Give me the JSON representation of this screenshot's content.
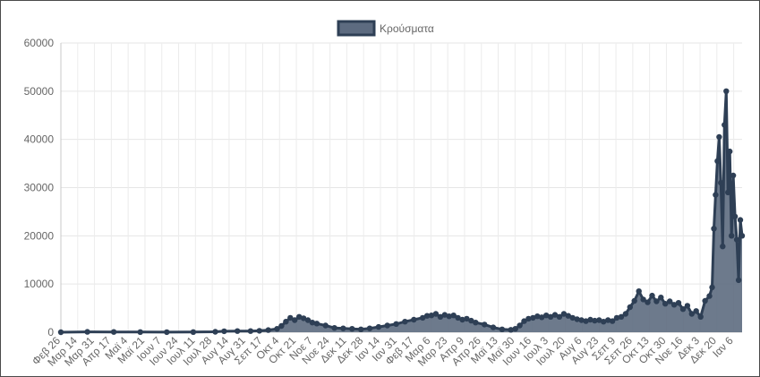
{
  "chart_data": {
    "type": "area",
    "legend": "Κρούσματα",
    "legend_position": "top-center",
    "grid": true,
    "ylim": [
      0,
      60000
    ],
    "yticks": [
      0,
      10000,
      20000,
      30000,
      40000,
      50000,
      60000
    ],
    "xtick_labels": [
      "Φεβ 26",
      "Μαρ 14",
      "Μαρ 31",
      "Απρ 17",
      "Μαϊ 4",
      "Μαϊ 21",
      "Ιουν 7",
      "Ιουν 24",
      "Ιουλ 11",
      "Ιουλ 28",
      "Αυγ 14",
      "Αυγ 31",
      "Σεπ 17",
      "Οκτ 4",
      "Οκτ 21",
      "Νοε 7",
      "Νοε 24",
      "Δεκ 11",
      "Δεκ 28",
      "Ιαν 14",
      "Ιαν 31",
      "Φεβ 17",
      "Μαρ 6",
      "Μαρ 23",
      "Απρ 9",
      "Απρ 26",
      "Μαϊ 13",
      "Μαϊ 30",
      "Ιουν 16",
      "Ιουλ 3",
      "Ιουλ 20",
      "Αυγ 6",
      "Αυγ 23",
      "Σεπ 9",
      "Σεπ 26",
      "Οκτ 13",
      "Οκτ 30",
      "Νοε 16",
      "Δεκ 3",
      "Δεκ 20",
      "Ιαν 6"
    ],
    "series": [
      {
        "name": "Κρούσματα",
        "color": "#2e3f55",
        "fill": "#5d6b80",
        "points": [
          [
            0,
            0
          ],
          [
            30,
            80
          ],
          [
            60,
            60
          ],
          [
            90,
            30
          ],
          [
            120,
            20
          ],
          [
            150,
            40
          ],
          [
            175,
            100
          ],
          [
            185,
            200
          ],
          [
            200,
            250
          ],
          [
            215,
            250
          ],
          [
            225,
            300
          ],
          [
            235,
            450
          ],
          [
            245,
            700
          ],
          [
            250,
            1300
          ],
          [
            255,
            2200
          ],
          [
            260,
            3000
          ],
          [
            265,
            2500
          ],
          [
            270,
            3200
          ],
          [
            275,
            2900
          ],
          [
            280,
            2500
          ],
          [
            285,
            2000
          ],
          [
            290,
            1800
          ],
          [
            300,
            1400
          ],
          [
            310,
            900
          ],
          [
            320,
            800
          ],
          [
            330,
            700
          ],
          [
            340,
            600
          ],
          [
            350,
            800
          ],
          [
            360,
            1100
          ],
          [
            370,
            1400
          ],
          [
            380,
            1700
          ],
          [
            390,
            2200
          ],
          [
            400,
            2600
          ],
          [
            410,
            3000
          ],
          [
            415,
            3400
          ],
          [
            420,
            3500
          ],
          [
            425,
            3800
          ],
          [
            430,
            3200
          ],
          [
            435,
            3600
          ],
          [
            440,
            3300
          ],
          [
            445,
            3500
          ],
          [
            450,
            3000
          ],
          [
            455,
            2600
          ],
          [
            460,
            2800
          ],
          [
            465,
            2400
          ],
          [
            470,
            2000
          ],
          [
            480,
            1600
          ],
          [
            490,
            1000
          ],
          [
            500,
            600
          ],
          [
            510,
            500
          ],
          [
            515,
            700
          ],
          [
            520,
            1400
          ],
          [
            525,
            2300
          ],
          [
            530,
            2800
          ],
          [
            535,
            3000
          ],
          [
            540,
            3300
          ],
          [
            545,
            3100
          ],
          [
            550,
            3500
          ],
          [
            555,
            3200
          ],
          [
            560,
            3600
          ],
          [
            565,
            3200
          ],
          [
            570,
            3800
          ],
          [
            575,
            3400
          ],
          [
            580,
            3000
          ],
          [
            585,
            2700
          ],
          [
            590,
            2500
          ],
          [
            595,
            2300
          ],
          [
            600,
            2600
          ],
          [
            605,
            2400
          ],
          [
            610,
            2500
          ],
          [
            615,
            2200
          ],
          [
            620,
            2500
          ],
          [
            625,
            2300
          ],
          [
            630,
            3000
          ],
          [
            635,
            3200
          ],
          [
            640,
            3800
          ],
          [
            645,
            5200
          ],
          [
            650,
            6500
          ],
          [
            655,
            8500
          ],
          [
            660,
            6800
          ],
          [
            665,
            6200
          ],
          [
            670,
            7600
          ],
          [
            675,
            6400
          ],
          [
            680,
            7200
          ],
          [
            685,
            5900
          ],
          [
            690,
            6400
          ],
          [
            695,
            5700
          ],
          [
            700,
            6100
          ],
          [
            705,
            4800
          ],
          [
            710,
            5500
          ],
          [
            715,
            3800
          ],
          [
            720,
            4400
          ],
          [
            725,
            3200
          ],
          [
            730,
            6500
          ],
          [
            735,
            7500
          ],
          [
            738,
            9300
          ],
          [
            740,
            21500
          ],
          [
            742,
            28500
          ],
          [
            744,
            35500
          ],
          [
            746,
            40500
          ],
          [
            748,
            31000
          ],
          [
            750,
            17800
          ],
          [
            752,
            43000
          ],
          [
            754,
            50000
          ],
          [
            756,
            29000
          ],
          [
            758,
            37500
          ],
          [
            760,
            20000
          ],
          [
            762,
            32500
          ],
          [
            764,
            24000
          ],
          [
            766,
            19200
          ],
          [
            768,
            10800
          ],
          [
            770,
            23300
          ],
          [
            772,
            20000
          ]
        ]
      }
    ]
  }
}
